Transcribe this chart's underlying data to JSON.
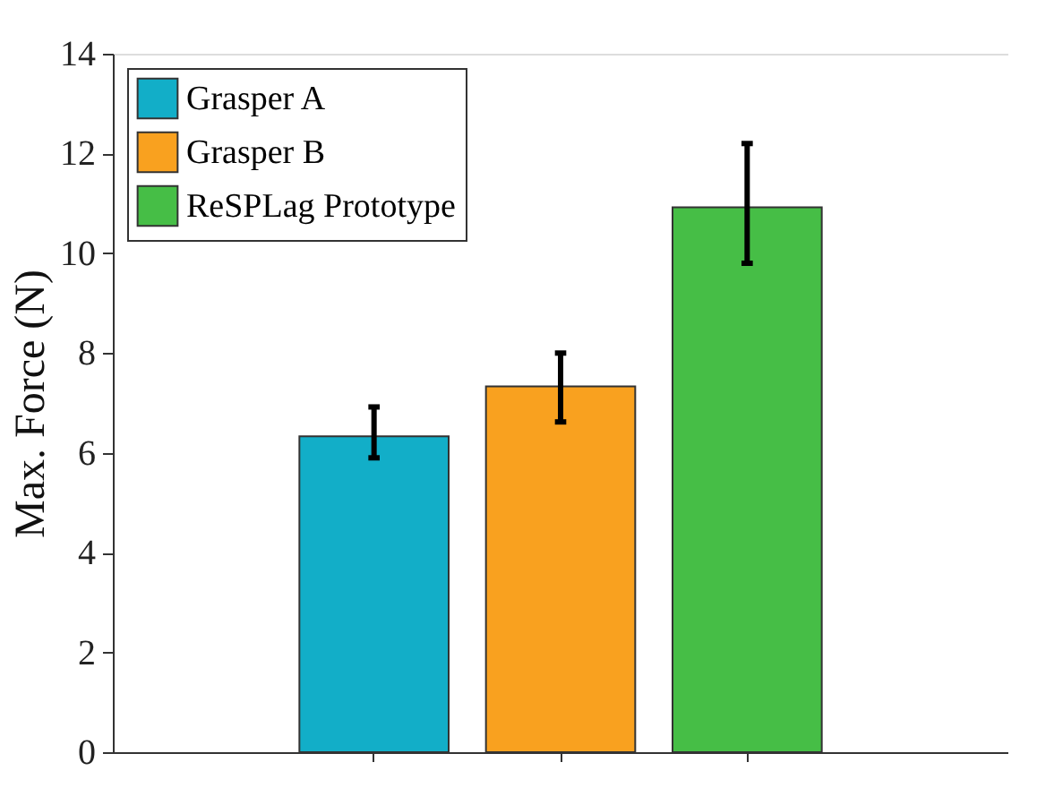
{
  "chart_data": {
    "type": "bar",
    "ylabel": "Max. Force (N)",
    "categories": [
      null,
      null,
      null
    ],
    "series": [
      {
        "name": "Grasper A",
        "color": "#12aec8",
        "values": [
          6.33,
          null,
          null
        ],
        "errors": [
          [
            5.9,
            6.92
          ],
          null,
          null
        ]
      },
      {
        "name": "Grasper B",
        "color": "#f9a11f",
        "values": [
          null,
          7.33,
          null
        ],
        "errors": [
          null,
          [
            6.62,
            8.0
          ],
          null
        ]
      },
      {
        "name": "ReSPLag Prototype",
        "color": "#46be46",
        "values": [
          null,
          null,
          10.92
        ],
        "errors": [
          null,
          null,
          [
            9.8,
            12.2
          ]
        ]
      }
    ],
    "ylim": [
      0,
      14
    ],
    "yticks": [
      0,
      2,
      4,
      6,
      8,
      10,
      12,
      14
    ],
    "grid": false,
    "legend": "top left",
    "tick_labels": "y"
  }
}
